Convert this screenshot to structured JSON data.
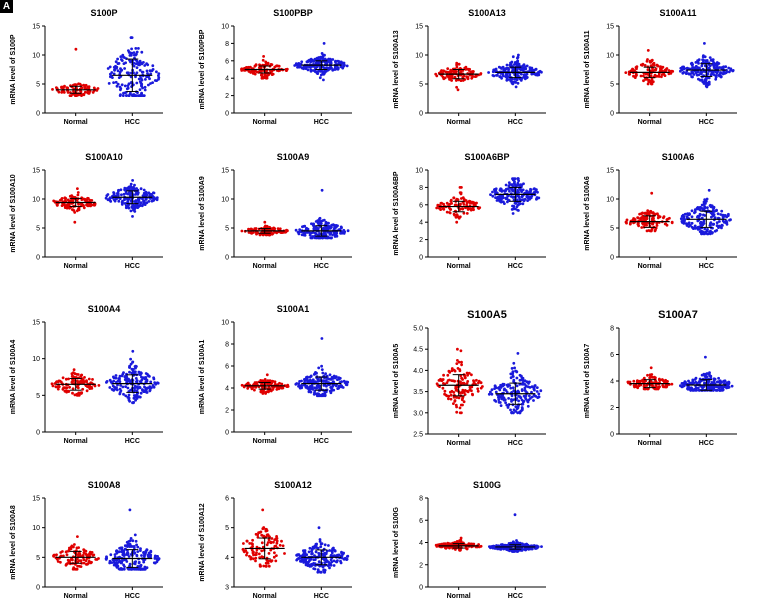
{
  "panel_label": "A",
  "colors": {
    "normal": "#e00000",
    "hcc": "#1a1adb",
    "axis": "#000000"
  },
  "chart_data": [
    {
      "type": "scatter",
      "title": "S100P",
      "ylabel": "mRNA level of S100P",
      "categories": [
        "Normal",
        "HCC"
      ],
      "ylim": [
        0,
        15
      ],
      "yticks": [
        0,
        5,
        10,
        15
      ],
      "series": [
        {
          "name": "Normal",
          "mean": 4.0,
          "sd": 0.6,
          "min": 3.0,
          "max": 11.0,
          "n": 90
        },
        {
          "name": "HCC",
          "mean": 6.5,
          "sd": 2.8,
          "min": 3.0,
          "max": 13.0,
          "n": 190
        }
      ]
    },
    {
      "type": "scatter",
      "title": "S100PBP",
      "ylabel": "mRNA level of S100PBP",
      "categories": [
        "Normal",
        "HCC"
      ],
      "ylim": [
        0,
        10
      ],
      "yticks": [
        0,
        2,
        4,
        6,
        8,
        10
      ],
      "series": [
        {
          "name": "Normal",
          "mean": 5.0,
          "sd": 0.4,
          "min": 4.0,
          "max": 6.5,
          "n": 110
        },
        {
          "name": "HCC",
          "mean": 5.5,
          "sd": 0.5,
          "min": 3.8,
          "max": 8.0,
          "n": 190
        }
      ]
    },
    {
      "type": "scatter",
      "title": "S100A13",
      "ylabel": "mRNA level of S100A13",
      "categories": [
        "Normal",
        "HCC"
      ],
      "ylim": [
        0,
        15
      ],
      "yticks": [
        0,
        5,
        10,
        15
      ],
      "series": [
        {
          "name": "Normal",
          "mean": 6.7,
          "sd": 0.8,
          "min": 4.0,
          "max": 8.6,
          "n": 110
        },
        {
          "name": "HCC",
          "mean": 7.0,
          "sd": 0.9,
          "min": 4.5,
          "max": 10.0,
          "n": 190
        }
      ]
    },
    {
      "type": "scatter",
      "title": "S100A11",
      "ylabel": "mRNA level of S100A11",
      "categories": [
        "Normal",
        "HCC"
      ],
      "ylim": [
        0,
        15
      ],
      "yticks": [
        0,
        5,
        10,
        15
      ],
      "series": [
        {
          "name": "Normal",
          "mean": 7.0,
          "sd": 0.9,
          "min": 5.0,
          "max": 10.8,
          "n": 110
        },
        {
          "name": "HCC",
          "mean": 7.4,
          "sd": 1.1,
          "min": 4.5,
          "max": 12.0,
          "n": 190
        }
      ]
    },
    {
      "type": "scatter",
      "title": "S100A10",
      "ylabel": "mRNA level of S100A10",
      "categories": [
        "Normal",
        "HCC"
      ],
      "ylim": [
        0,
        15
      ],
      "yticks": [
        0,
        5,
        10,
        15
      ],
      "series": [
        {
          "name": "Normal",
          "mean": 9.4,
          "sd": 0.7,
          "min": 6.0,
          "max": 11.8,
          "n": 110
        },
        {
          "name": "HCC",
          "mean": 10.3,
          "sd": 1.1,
          "min": 7.0,
          "max": 13.2,
          "n": 190
        }
      ]
    },
    {
      "type": "scatter",
      "title": "S100A9",
      "ylabel": "mRNA level of S100A9",
      "categories": [
        "Normal",
        "HCC"
      ],
      "ylim": [
        0,
        15
      ],
      "yticks": [
        0,
        5,
        10,
        15
      ],
      "series": [
        {
          "name": "Normal",
          "mean": 4.5,
          "sd": 0.4,
          "min": 3.8,
          "max": 6.0,
          "n": 110
        },
        {
          "name": "HCC",
          "mean": 4.5,
          "sd": 0.9,
          "min": 3.3,
          "max": 11.5,
          "n": 190
        }
      ]
    },
    {
      "type": "scatter",
      "title": "S100A6BP",
      "ylabel": "mRNA level of S100A6BP",
      "categories": [
        "Normal",
        "HCC"
      ],
      "ylim": [
        0,
        10
      ],
      "yticks": [
        0,
        2,
        4,
        6,
        8,
        10
      ],
      "series": [
        {
          "name": "Normal",
          "mean": 5.8,
          "sd": 0.6,
          "min": 4.0,
          "max": 8.0,
          "n": 110
        },
        {
          "name": "HCC",
          "mean": 7.2,
          "sd": 0.8,
          "min": 5.0,
          "max": 9.0,
          "n": 190
        }
      ]
    },
    {
      "type": "scatter",
      "title": "S100A6",
      "ylabel": "mRNA level of S100A6",
      "categories": [
        "Normal",
        "HCC"
      ],
      "ylim": [
        0,
        15
      ],
      "yticks": [
        0,
        5,
        10,
        15
      ],
      "series": [
        {
          "name": "Normal",
          "mean": 6.1,
          "sd": 1.0,
          "min": 4.5,
          "max": 11.0,
          "n": 110
        },
        {
          "name": "HCC",
          "mean": 6.5,
          "sd": 1.4,
          "min": 4.0,
          "max": 11.5,
          "n": 190
        }
      ]
    },
    {
      "type": "scatter",
      "title": "S100A4",
      "ylabel": "mRNA level of S100A4",
      "categories": [
        "Normal",
        "HCC"
      ],
      "ylim": [
        0,
        15
      ],
      "yticks": [
        0,
        5,
        10,
        15
      ],
      "series": [
        {
          "name": "Normal",
          "mean": 6.5,
          "sd": 0.8,
          "min": 5.0,
          "max": 8.5,
          "n": 110
        },
        {
          "name": "HCC",
          "mean": 6.6,
          "sd": 1.2,
          "min": 4.0,
          "max": 11.0,
          "n": 190
        }
      ]
    },
    {
      "type": "scatter",
      "title": "S100A1",
      "ylabel": "mRNA level of S100A1",
      "categories": [
        "Normal",
        "HCC"
      ],
      "ylim": [
        0,
        10
      ],
      "yticks": [
        0,
        2,
        4,
        6,
        8,
        10
      ],
      "series": [
        {
          "name": "Normal",
          "mean": 4.2,
          "sd": 0.3,
          "min": 3.5,
          "max": 5.2,
          "n": 110
        },
        {
          "name": "HCC",
          "mean": 4.4,
          "sd": 0.6,
          "min": 3.3,
          "max": 8.5,
          "n": 190
        }
      ]
    },
    {
      "type": "scatter",
      "title": "S100A5",
      "ylabel": "mRNA level of S100A5",
      "categories": [
        "Normal",
        "HCC"
      ],
      "ylim": [
        2.5,
        5.0
      ],
      "yticks": [
        2.5,
        3.0,
        3.5,
        4.0,
        4.5,
        5.0
      ],
      "tick_decimals": 1,
      "large": true,
      "series": [
        {
          "name": "Normal",
          "mean": 3.65,
          "sd": 0.25,
          "min": 3.0,
          "max": 4.5,
          "n": 130
        },
        {
          "name": "HCC",
          "mean": 3.45,
          "sd": 0.25,
          "min": 3.0,
          "max": 4.4,
          "n": 190
        }
      ]
    },
    {
      "type": "scatter",
      "title": "S100A7",
      "ylabel": "mRNA level of S100A7",
      "categories": [
        "Normal",
        "HCC"
      ],
      "ylim": [
        0,
        8
      ],
      "yticks": [
        0,
        2,
        4,
        6,
        8
      ],
      "large": true,
      "series": [
        {
          "name": "Normal",
          "mean": 3.8,
          "sd": 0.3,
          "min": 3.4,
          "max": 5.0,
          "n": 110
        },
        {
          "name": "HCC",
          "mean": 3.7,
          "sd": 0.4,
          "min": 3.3,
          "max": 5.8,
          "n": 190
        }
      ]
    },
    {
      "type": "scatter",
      "title": "S100A8",
      "ylabel": "mRNA level of S100A8",
      "categories": [
        "Normal",
        "HCC"
      ],
      "ylim": [
        0,
        15
      ],
      "yticks": [
        0,
        5,
        10,
        15
      ],
      "series": [
        {
          "name": "Normal",
          "mean": 5.0,
          "sd": 1.0,
          "min": 3.0,
          "max": 8.5,
          "n": 110
        },
        {
          "name": "HCC",
          "mean": 4.8,
          "sd": 1.5,
          "min": 3.0,
          "max": 13.0,
          "n": 190
        }
      ]
    },
    {
      "type": "scatter",
      "title": "S100A12",
      "ylabel": "mRNA level of S100A12",
      "categories": [
        "Normal",
        "HCC"
      ],
      "ylim": [
        3,
        6
      ],
      "yticks": [
        3,
        4,
        5,
        6
      ],
      "series": [
        {
          "name": "Normal",
          "mean": 4.3,
          "sd": 0.35,
          "min": 3.7,
          "max": 5.6,
          "n": 110
        },
        {
          "name": "HCC",
          "mean": 4.0,
          "sd": 0.25,
          "min": 3.5,
          "max": 5.0,
          "n": 190
        }
      ]
    },
    {
      "type": "scatter",
      "title": "S100G",
      "ylabel": "mRNA level of S100G",
      "categories": [
        "Normal",
        "HCC"
      ],
      "ylim": [
        0,
        8
      ],
      "yticks": [
        0,
        2,
        4,
        6,
        8
      ],
      "series": [
        {
          "name": "Normal",
          "mean": 3.7,
          "sd": 0.2,
          "min": 3.3,
          "max": 4.4,
          "n": 110
        },
        {
          "name": "HCC",
          "mean": 3.6,
          "sd": 0.2,
          "min": 3.2,
          "max": 6.5,
          "n": 190
        }
      ]
    }
  ]
}
